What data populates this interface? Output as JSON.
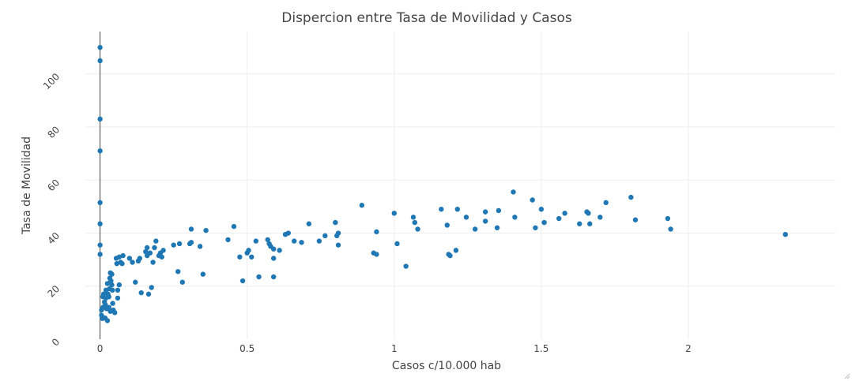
{
  "chart_data": {
    "type": "scatter",
    "title": "Dispercion entre Tasa de Movilidad y Casos",
    "xlabel": "Casos c/10.000 hab",
    "ylabel": "Tasa de Movilidad",
    "xlim": [
      -0.05,
      2.5
    ],
    "ylim": [
      0,
      116
    ],
    "grid": true,
    "x_ticks": [
      0,
      0.5,
      1,
      1.5,
      2
    ],
    "x_tick_labels": [
      "0",
      "0.5",
      "1",
      "1.5",
      "2"
    ],
    "y_ticks": [
      0,
      20,
      40,
      60,
      80,
      100
    ],
    "y_tick_labels": [
      "0",
      "20",
      "40",
      "60",
      "80",
      "100"
    ],
    "marker_color": "#1f77b4",
    "points": [
      [
        0,
        110
      ],
      [
        0,
        105
      ],
      [
        0,
        83
      ],
      [
        0,
        71
      ],
      [
        0,
        51.5
      ],
      [
        0,
        43.5
      ],
      [
        0,
        35.5
      ],
      [
        0,
        32
      ],
      [
        0.005,
        11
      ],
      [
        0.005,
        9
      ],
      [
        0.008,
        7.8
      ],
      [
        0.01,
        12
      ],
      [
        0.01,
        16
      ],
      [
        0.012,
        17
      ],
      [
        0.015,
        14
      ],
      [
        0.017,
        8
      ],
      [
        0.018,
        13
      ],
      [
        0.02,
        18.5
      ],
      [
        0.02,
        15.5
      ],
      [
        0.022,
        11.5
      ],
      [
        0.025,
        21
      ],
      [
        0.025,
        7
      ],
      [
        0.027,
        17
      ],
      [
        0.03,
        16
      ],
      [
        0.03,
        12
      ],
      [
        0.032,
        19
      ],
      [
        0.033,
        23
      ],
      [
        0.035,
        10.5
      ],
      [
        0.035,
        25
      ],
      [
        0.037,
        22
      ],
      [
        0.04,
        24.5
      ],
      [
        0.04,
        20.5
      ],
      [
        0.042,
        18.5
      ],
      [
        0.043,
        13.5
      ],
      [
        0.045,
        11
      ],
      [
        0.05,
        10
      ],
      [
        0.055,
        30.5
      ],
      [
        0.057,
        28.5
      ],
      [
        0.06,
        18.5
      ],
      [
        0.06,
        15.5
      ],
      [
        0.065,
        31
      ],
      [
        0.065,
        20.5
      ],
      [
        0.07,
        29
      ],
      [
        0.075,
        28.5
      ],
      [
        0.078,
        31.5
      ],
      [
        0.1,
        30.5
      ],
      [
        0.11,
        29
      ],
      [
        0.12,
        21.5
      ],
      [
        0.13,
        29.5
      ],
      [
        0.135,
        30.5
      ],
      [
        0.14,
        17.5
      ],
      [
        0.155,
        33
      ],
      [
        0.16,
        31.5
      ],
      [
        0.16,
        34.5
      ],
      [
        0.165,
        17
      ],
      [
        0.17,
        32.5
      ],
      [
        0.175,
        19.5
      ],
      [
        0.18,
        29
      ],
      [
        0.185,
        34.5
      ],
      [
        0.19,
        37
      ],
      [
        0.2,
        31.5
      ],
      [
        0.205,
        32.5
      ],
      [
        0.21,
        31
      ],
      [
        0.215,
        33.5
      ],
      [
        0.25,
        35.5
      ],
      [
        0.265,
        25.5
      ],
      [
        0.27,
        36
      ],
      [
        0.28,
        21.5
      ],
      [
        0.305,
        36
      ],
      [
        0.31,
        41.5
      ],
      [
        0.31,
        36.5
      ],
      [
        0.34,
        35
      ],
      [
        0.35,
        24.5
      ],
      [
        0.36,
        41
      ],
      [
        0.435,
        37.5
      ],
      [
        0.455,
        42.5
      ],
      [
        0.475,
        31
      ],
      [
        0.485,
        22
      ],
      [
        0.5,
        32.5
      ],
      [
        0.505,
        33.5
      ],
      [
        0.515,
        31
      ],
      [
        0.53,
        37
      ],
      [
        0.54,
        23.5
      ],
      [
        0.57,
        37.5
      ],
      [
        0.575,
        36
      ],
      [
        0.58,
        35
      ],
      [
        0.59,
        34
      ],
      [
        0.59,
        30.5
      ],
      [
        0.59,
        23.5
      ],
      [
        0.61,
        33.5
      ],
      [
        0.63,
        39.5
      ],
      [
        0.64,
        40
      ],
      [
        0.66,
        37
      ],
      [
        0.685,
        36.5
      ],
      [
        0.71,
        43.5
      ],
      [
        0.745,
        37
      ],
      [
        0.765,
        39
      ],
      [
        0.8,
        44
      ],
      [
        0.805,
        39
      ],
      [
        0.81,
        40
      ],
      [
        0.81,
        35.5
      ],
      [
        0.89,
        50.5
      ],
      [
        0.93,
        32.5
      ],
      [
        0.94,
        32
      ],
      [
        0.94,
        40.5
      ],
      [
        1.0,
        47.5
      ],
      [
        1.01,
        36
      ],
      [
        1.04,
        27.5
      ],
      [
        1.065,
        46
      ],
      [
        1.07,
        44
      ],
      [
        1.08,
        41.5
      ],
      [
        1.16,
        49
      ],
      [
        1.18,
        43
      ],
      [
        1.185,
        32
      ],
      [
        1.19,
        31.5
      ],
      [
        1.21,
        33.5
      ],
      [
        1.215,
        49
      ],
      [
        1.245,
        46
      ],
      [
        1.275,
        41.5
      ],
      [
        1.31,
        44.5
      ],
      [
        1.31,
        48
      ],
      [
        1.35,
        42
      ],
      [
        1.355,
        48.5
      ],
      [
        1.405,
        55.5
      ],
      [
        1.41,
        46
      ],
      [
        1.47,
        52.5
      ],
      [
        1.48,
        42
      ],
      [
        1.5,
        49
      ],
      [
        1.51,
        44
      ],
      [
        1.56,
        45.5
      ],
      [
        1.58,
        47.5
      ],
      [
        1.63,
        43.5
      ],
      [
        1.655,
        48
      ],
      [
        1.66,
        47.5
      ],
      [
        1.665,
        43.5
      ],
      [
        1.7,
        46
      ],
      [
        1.72,
        51.5
      ],
      [
        1.805,
        53.5
      ],
      [
        1.82,
        45
      ],
      [
        1.93,
        45.5
      ],
      [
        1.94,
        41.5
      ],
      [
        2.33,
        39.5
      ]
    ]
  }
}
